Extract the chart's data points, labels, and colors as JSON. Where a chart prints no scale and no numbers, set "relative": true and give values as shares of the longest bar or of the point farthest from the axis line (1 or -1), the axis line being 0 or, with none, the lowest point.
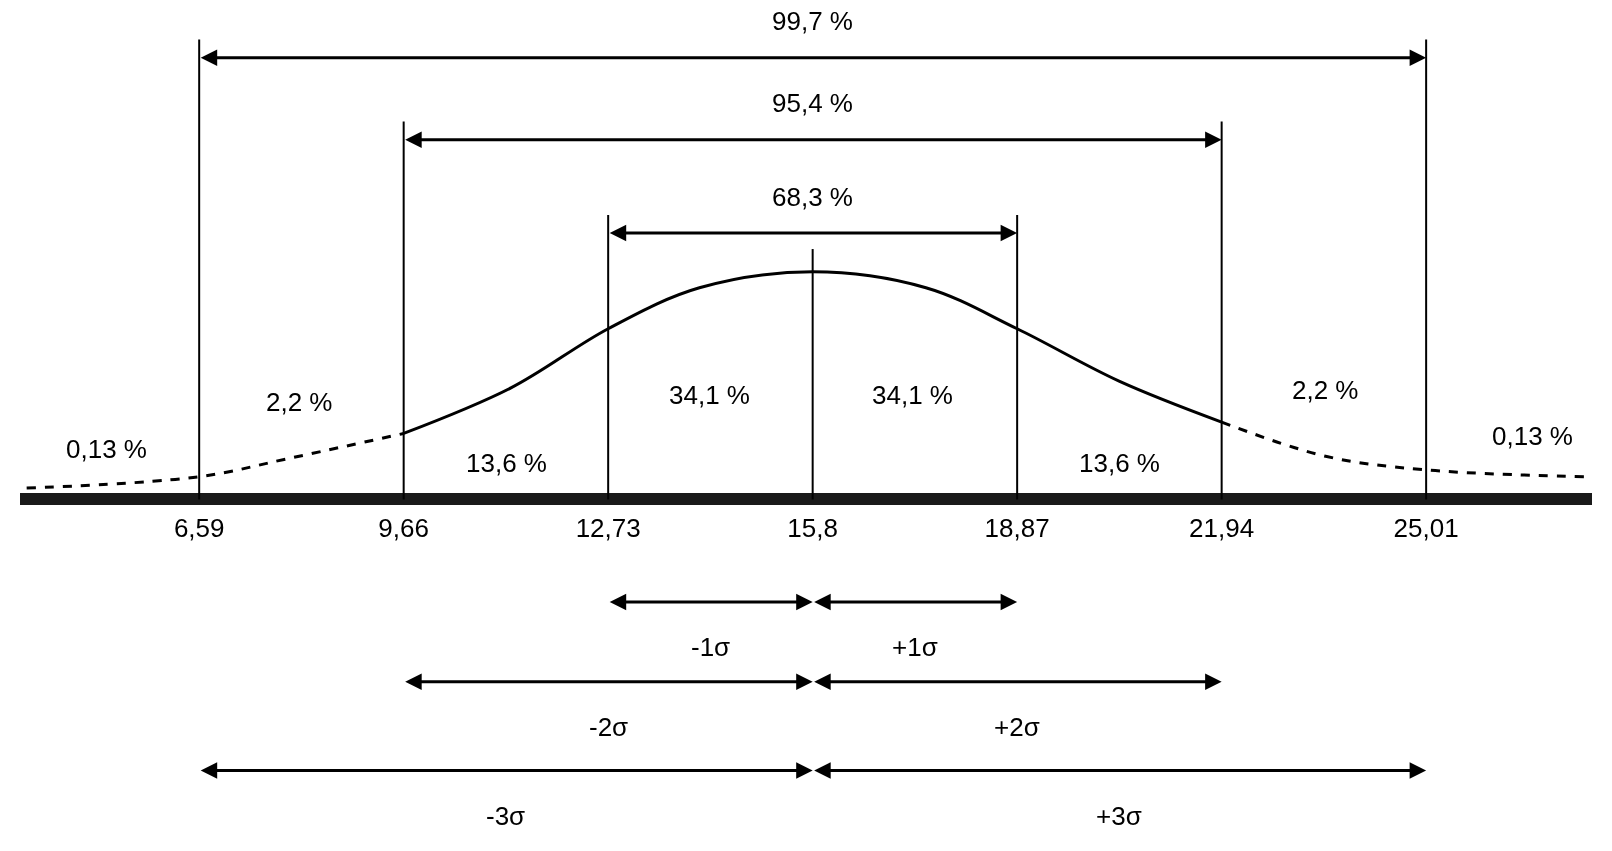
{
  "chart_data": {
    "type": "line",
    "relative": true,
    "series": [
      {
        "color": "#000000",
        "line_style": "dashed",
        "x": [
          4.0,
          6.59,
          7.93,
          9.66
        ],
        "values": [
          0.05,
          0.1,
          0.18,
          0.29
        ]
      },
      {
        "color": "#000000",
        "line_style": "solid",
        "x": [
          9.66,
          11.27,
          12.73,
          14.1,
          15.8,
          17.5,
          18.87,
          20.4,
          21.94
        ],
        "values": [
          0.29,
          0.49,
          0.75,
          0.93,
          1.0,
          0.93,
          0.75,
          0.52,
          0.34
        ]
      },
      {
        "color": "#000000",
        "line_style": "dashed",
        "x": [
          21.94,
          23.5,
          25.01,
          27.4
        ],
        "values": [
          0.34,
          0.19,
          0.13,
          0.1
        ]
      }
    ],
    "xlim": [
      3.9,
      27.5
    ],
    "xticks": [
      {
        "value": 6.59,
        "label": "6,59"
      },
      {
        "value": 9.66,
        "label": "9,66"
      },
      {
        "value": 12.73,
        "label": "12,73"
      },
      {
        "value": 15.8,
        "label": "15,8"
      },
      {
        "value": 18.87,
        "label": "18,87"
      },
      {
        "value": 21.94,
        "label": "21,94"
      },
      {
        "value": 25.01,
        "label": "25,01"
      }
    ],
    "ref_lines": [
      {
        "axis": "x",
        "value": 6.59
      },
      {
        "axis": "x",
        "value": 9.66
      },
      {
        "axis": "x",
        "value": 12.73
      },
      {
        "axis": "x",
        "value": 15.8
      },
      {
        "axis": "x",
        "value": 18.87
      },
      {
        "axis": "x",
        "value": 21.94
      },
      {
        "axis": "x",
        "value": 25.01
      }
    ],
    "annotations": [
      "0,13 %",
      "2,2 %",
      "13,6 %",
      "34,1 %",
      "34,1 %",
      "13,6 %",
      "2,2 %",
      "0,13 %",
      "99,7 %",
      "95,4 %",
      "68,3 %",
      "-1σ",
      "+1σ",
      "-2σ",
      "+2σ",
      "-3σ",
      "+3σ"
    ]
  }
}
